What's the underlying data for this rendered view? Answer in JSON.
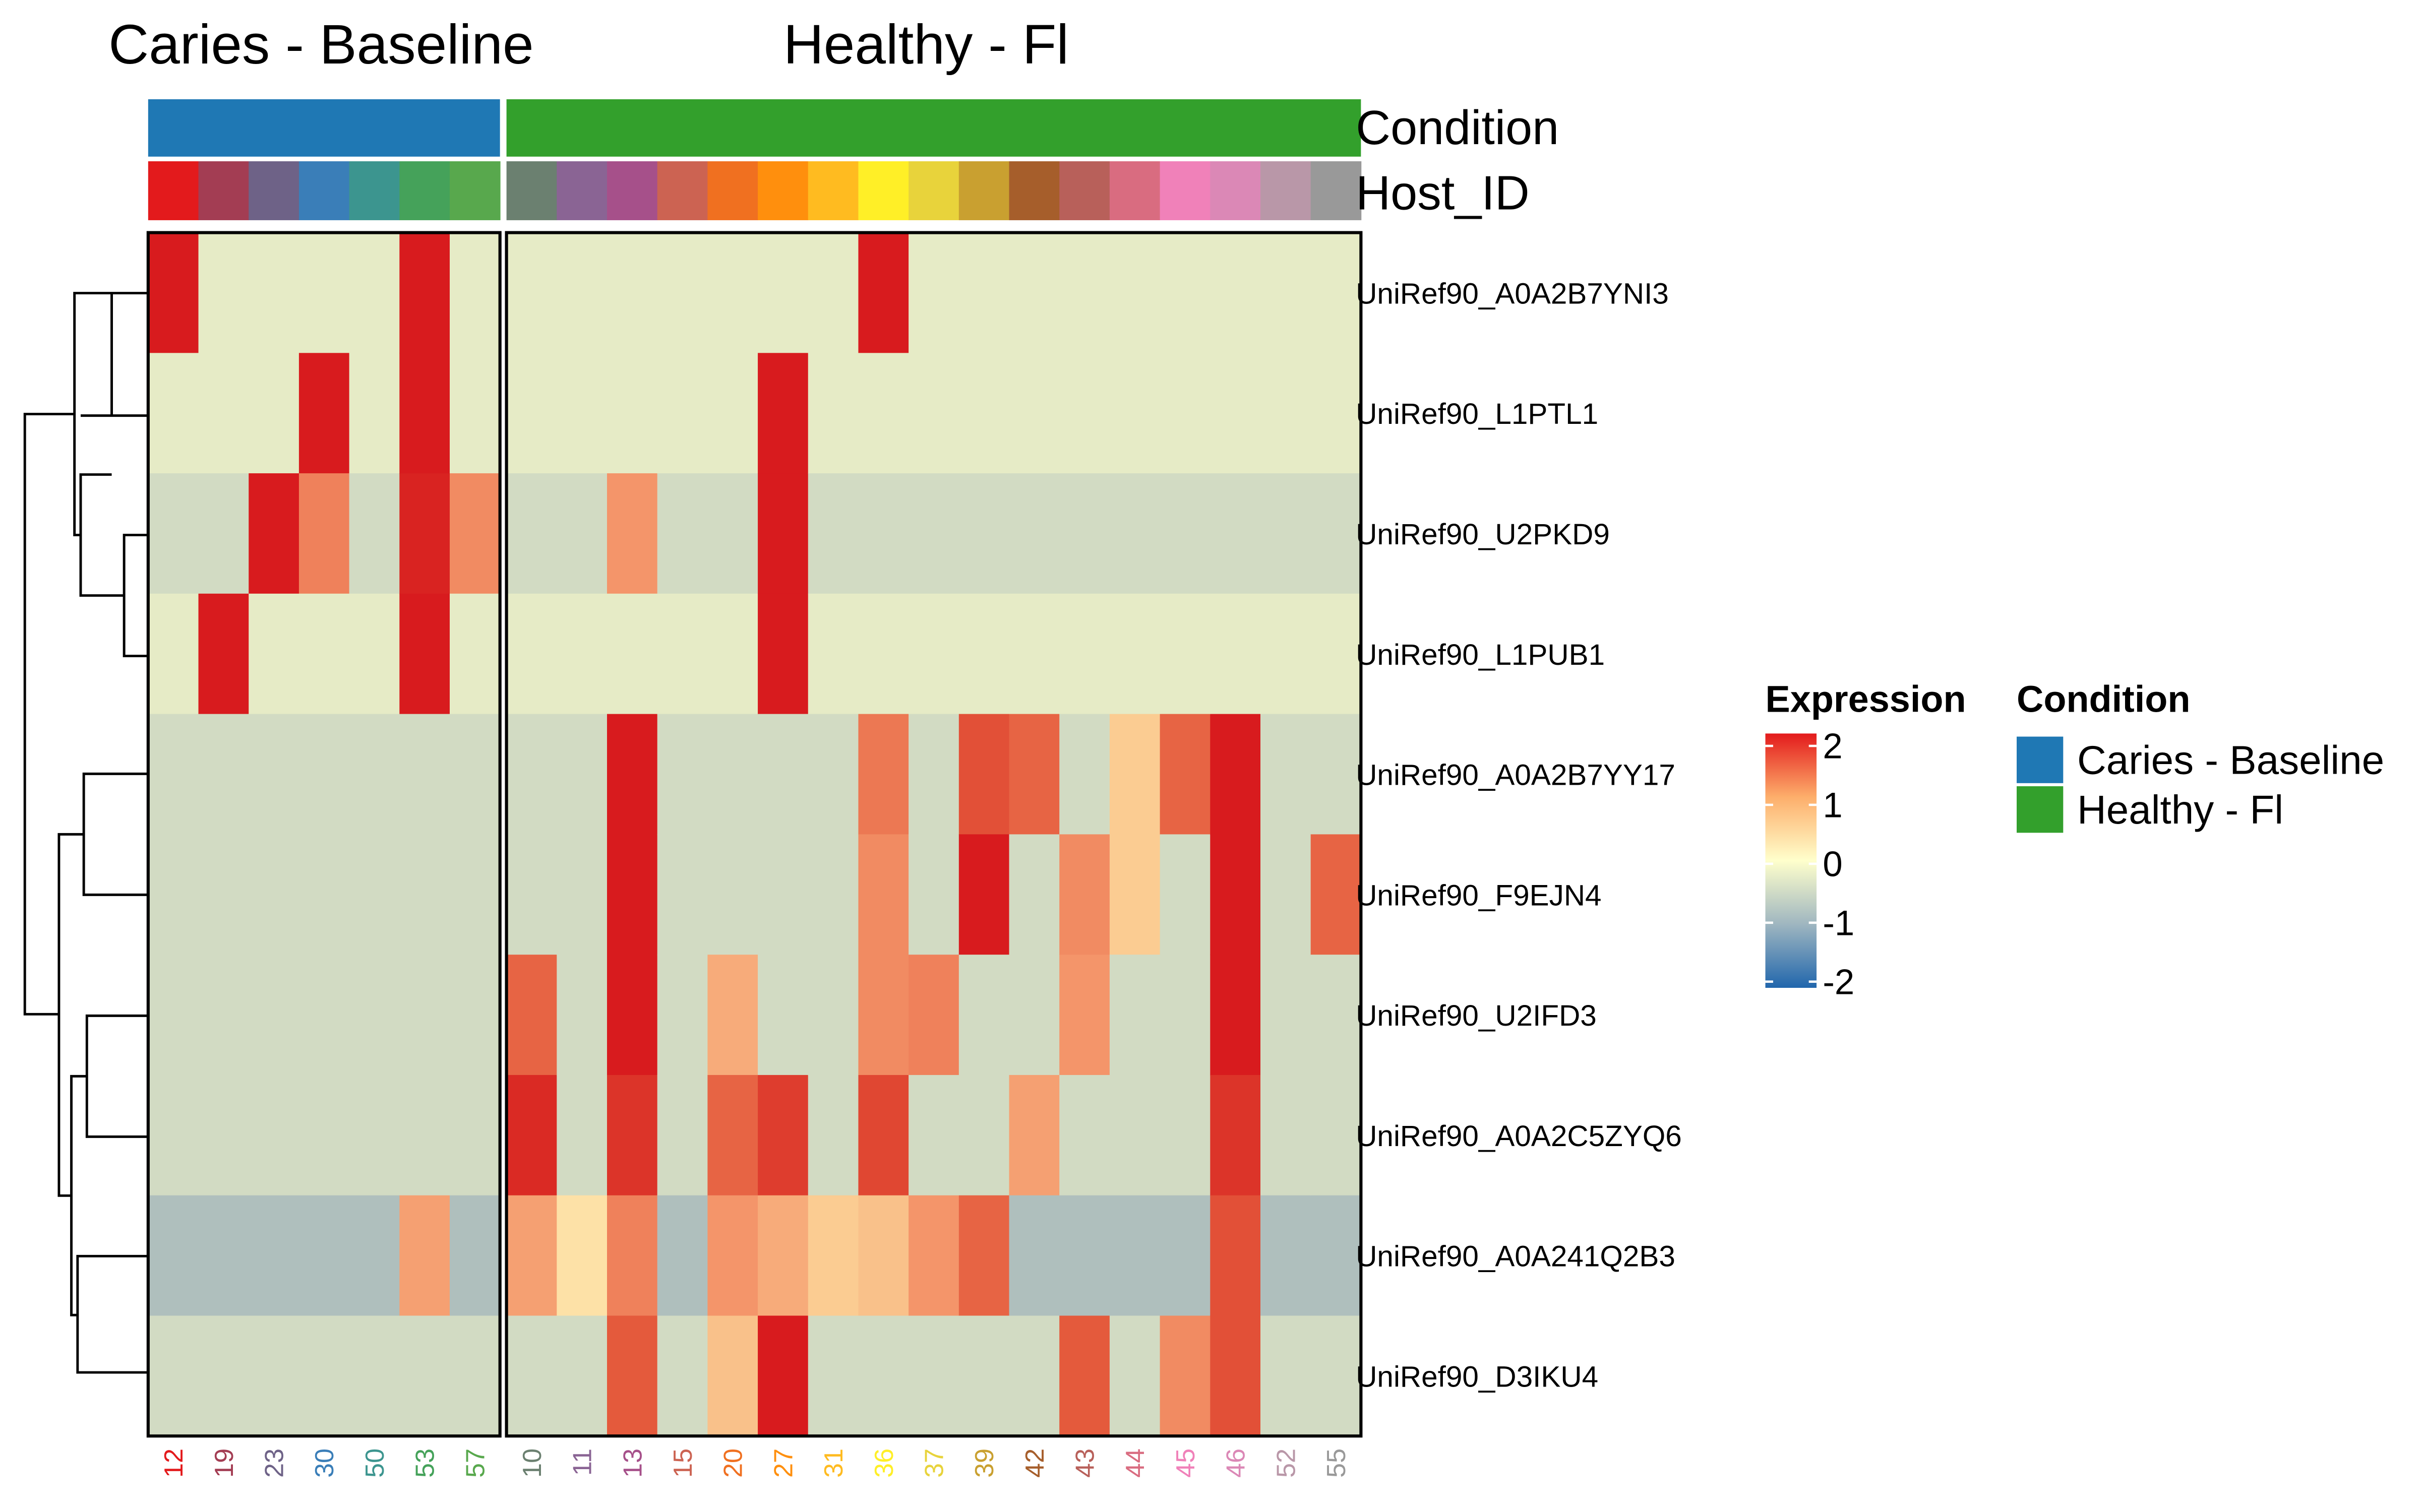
{
  "chart_data": {
    "type": "heatmap",
    "groups": [
      {
        "name": "Caries - Baseline",
        "color": "#1F78B4",
        "samples": [
          "12",
          "19",
          "23",
          "30",
          "50",
          "53",
          "57"
        ],
        "sample_colors": [
          "#E31A1C",
          "#A33D53",
          "#6E6287",
          "#3A7EB8",
          "#3C958F",
          "#45A25A",
          "#58A84D"
        ]
      },
      {
        "name": "Healthy - Fl",
        "color": "#33A02C",
        "samples": [
          "10",
          "11",
          "13",
          "15",
          "20",
          "27",
          "31",
          "36",
          "37",
          "39",
          "42",
          "43",
          "44",
          "45",
          "46",
          "52",
          "55"
        ],
        "sample_colors": [
          "#6B8070",
          "#8A6494",
          "#A6508A",
          "#CC6352",
          "#F07020",
          "#FF8F0D",
          "#FFBB20",
          "#FFEF27",
          "#E8D33B",
          "#C9A030",
          "#A65E2B",
          "#B8605A",
          "#D96C80",
          "#F081B9",
          "#DB88B6",
          "#B997A8",
          "#999999"
        ]
      }
    ],
    "rows": [
      "UniRef90_A0A2B7YNI3",
      "UniRef90_L1PTL1",
      "UniRef90_U2PKD9",
      "UniRef90_L1PUB1",
      "UniRef90_A0A2B7YY17",
      "UniRef90_F9EJN4",
      "UniRef90_U2IFD3",
      "UniRef90_A0A2C5ZYQ6",
      "UniRef90_A0A241Q2B3",
      "UniRef90_D3IKU4"
    ],
    "values": [
      [
        2.5,
        -0.3,
        -0.3,
        -0.3,
        -0.3,
        2.5,
        -0.3,
        -0.3,
        -0.3,
        -0.3,
        -0.3,
        -0.3,
        -0.3,
        -0.3,
        2.5,
        -0.3,
        -0.3,
        -0.3,
        -0.3,
        -0.3,
        -0.3,
        -0.3,
        -0.3,
        -0.3
      ],
      [
        -0.3,
        -0.3,
        -0.3,
        2.5,
        -0.3,
        2.5,
        -0.3,
        -0.3,
        -0.3,
        -0.3,
        -0.3,
        -0.3,
        2.5,
        -0.3,
        -0.3,
        -0.3,
        -0.3,
        -0.3,
        -0.3,
        -0.3,
        -0.3,
        -0.3,
        -0.3,
        -0.3
      ],
      [
        -0.5,
        -0.5,
        2.5,
        1.2,
        -0.5,
        2.3,
        1.1,
        -0.5,
        -0.5,
        1.0,
        -0.5,
        -0.5,
        2.5,
        -0.5,
        -0.5,
        -0.5,
        -0.5,
        -0.5,
        -0.5,
        -0.5,
        -0.5,
        -0.5,
        -0.5,
        -0.5
      ],
      [
        -0.3,
        2.5,
        -0.3,
        -0.3,
        -0.3,
        2.5,
        -0.3,
        -0.3,
        -0.3,
        -0.3,
        -0.3,
        -0.3,
        2.5,
        -0.3,
        -0.3,
        -0.3,
        -0.3,
        -0.3,
        -0.3,
        -0.3,
        -0.3,
        -0.3,
        -0.3,
        -0.3
      ],
      [
        -0.5,
        -0.5,
        -0.5,
        -0.5,
        -0.5,
        -0.5,
        -0.5,
        -0.5,
        -0.5,
        2.5,
        -0.5,
        -0.5,
        -0.5,
        -0.5,
        1.3,
        -0.5,
        1.7,
        1.5,
        -0.5,
        0.5,
        1.5,
        2.5,
        -0.5,
        -0.5
      ],
      [
        -0.5,
        -0.5,
        -0.5,
        -0.5,
        -0.5,
        -0.5,
        -0.5,
        -0.5,
        -0.5,
        2.5,
        -0.5,
        -0.5,
        -0.5,
        -0.5,
        1.1,
        -0.5,
        2.5,
        -0.5,
        1.1,
        0.5,
        -0.5,
        2.5,
        -0.5,
        1.5
      ],
      [
        -0.5,
        -0.5,
        -0.5,
        -0.5,
        -0.5,
        -0.5,
        -0.5,
        1.5,
        -0.5,
        2.5,
        -0.5,
        0.8,
        -0.5,
        -0.5,
        1.1,
        1.2,
        -0.5,
        -0.5,
        1.0,
        -0.5,
        -0.5,
        2.5,
        -0.5,
        -0.5
      ],
      [
        -0.5,
        -0.5,
        -0.5,
        -0.5,
        -0.5,
        -0.5,
        -0.5,
        2.1,
        -0.5,
        2.0,
        -0.5,
        1.5,
        1.9,
        -0.5,
        1.8,
        -0.5,
        -0.5,
        0.9,
        -0.5,
        -0.5,
        -0.5,
        2.0,
        -0.5,
        -0.5
      ],
      [
        -0.9,
        -0.9,
        -0.9,
        -0.9,
        -0.9,
        0.9,
        -0.9,
        0.9,
        0.3,
        1.2,
        -0.9,
        1.0,
        0.8,
        0.5,
        0.6,
        1.0,
        1.5,
        -0.9,
        -0.9,
        -0.9,
        -0.9,
        1.7,
        -0.9,
        -0.9
      ],
      [
        -0.5,
        -0.5,
        -0.5,
        -0.5,
        -0.5,
        -0.5,
        -0.5,
        -0.5,
        -0.5,
        1.6,
        -0.5,
        0.6,
        2.5,
        -0.5,
        -0.5,
        -0.5,
        -0.5,
        -0.5,
        1.6,
        -0.5,
        1.1,
        1.7,
        -0.5,
        -0.5
      ]
    ],
    "color_scale": {
      "min": -2,
      "max": 2,
      "stops": [
        "#2166AC",
        "#D1DCC9",
        "#FFFFCC",
        "#FDBF7F",
        "#E31A1C"
      ]
    },
    "annotation_labels": [
      "Condition",
      "Host_ID"
    ],
    "legend": {
      "expression_title": "Expression",
      "expression_ticks": [
        "2",
        "1",
        "0",
        "-1",
        "-2"
      ],
      "condition_title": "Condition",
      "condition_items": [
        "Caries - Baseline",
        "Healthy - Fl"
      ]
    }
  }
}
